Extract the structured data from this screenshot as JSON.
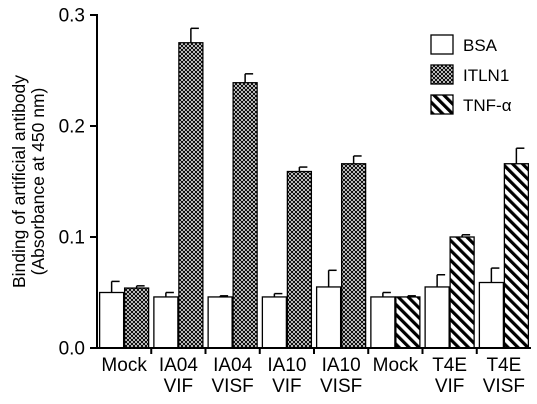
{
  "chart_data": {
    "type": "bar",
    "title": "",
    "ylabel_lines": [
      "Binding of artificial antibody",
      "(Absorbance at 450 nm)"
    ],
    "xlabel": "",
    "ylim": [
      0,
      0.3
    ],
    "yticks": [
      "0.0",
      "0.1",
      "0.2",
      "0.3"
    ],
    "grid": false,
    "legend_position": "top-right",
    "groups": [
      {
        "label_lines": [
          "Mock"
        ],
        "bars": [
          {
            "series": "BSA",
            "value": 0.05,
            "error": 0.01
          },
          {
            "series": "ITLN1",
            "value": 0.054,
            "error": 0.002
          }
        ]
      },
      {
        "label_lines": [
          "IA04",
          "VIF"
        ],
        "bars": [
          {
            "series": "BSA",
            "value": 0.046,
            "error": 0.004
          },
          {
            "series": "ITLN1",
            "value": 0.275,
            "error": 0.013
          }
        ]
      },
      {
        "label_lines": [
          "IA04",
          "VISF"
        ],
        "bars": [
          {
            "series": "BSA",
            "value": 0.046,
            "error": 0.001
          },
          {
            "series": "ITLN1",
            "value": 0.239,
            "error": 0.008
          }
        ]
      },
      {
        "label_lines": [
          "IA10",
          "VIF"
        ],
        "bars": [
          {
            "series": "BSA",
            "value": 0.046,
            "error": 0.003
          },
          {
            "series": "ITLN1",
            "value": 0.159,
            "error": 0.004
          }
        ]
      },
      {
        "label_lines": [
          "IA10",
          "VISF"
        ],
        "bars": [
          {
            "series": "BSA",
            "value": 0.055,
            "error": 0.015
          },
          {
            "series": "ITLN1",
            "value": 0.166,
            "error": 0.007
          }
        ]
      },
      {
        "label_lines": [
          "Mock"
        ],
        "bars": [
          {
            "series": "BSA",
            "value": 0.046,
            "error": 0.004
          },
          {
            "series": "TNF-α",
            "value": 0.046,
            "error": 0.001
          }
        ]
      },
      {
        "label_lines": [
          "T4E",
          "VIF"
        ],
        "bars": [
          {
            "series": "BSA",
            "value": 0.055,
            "error": 0.011
          },
          {
            "series": "TNF-α",
            "value": 0.1,
            "error": 0.002
          }
        ]
      },
      {
        "label_lines": [
          "T4E",
          "VISF"
        ],
        "bars": [
          {
            "series": "BSA",
            "value": 0.059,
            "error": 0.013
          },
          {
            "series": "TNF-α",
            "value": 0.166,
            "error": 0.014
          }
        ]
      }
    ],
    "legend": [
      {
        "name": "BSA",
        "fill": "white"
      },
      {
        "name": "ITLN1",
        "fill": "crosshatch"
      },
      {
        "name": "TNF-α",
        "fill": "diagonal-hatch"
      }
    ],
    "colors": {
      "outline": "#000000",
      "background": "#ffffff"
    }
  }
}
